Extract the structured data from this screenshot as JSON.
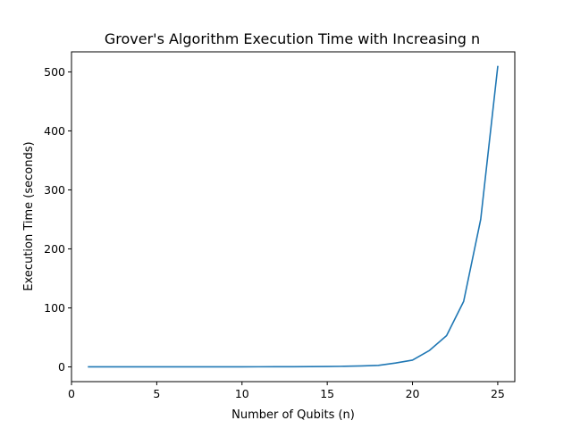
{
  "chart_data": {
    "type": "line",
    "title": "Grover's Algorithm Execution Time with Increasing n",
    "xlabel": "Number of Qubits (n)",
    "ylabel": "Execution Time (seconds)",
    "xlim": [
      0,
      26
    ],
    "ylim": [
      -25,
      534
    ],
    "xticks": [
      0,
      5,
      10,
      15,
      20,
      25
    ],
    "yticks": [
      0,
      100,
      200,
      300,
      400,
      500
    ],
    "grid": false,
    "series": [
      {
        "color": "#1f77b4",
        "x": [
          1,
          2,
          3,
          4,
          5,
          6,
          7,
          8,
          9,
          10,
          11,
          12,
          13,
          14,
          15,
          16,
          17,
          18,
          19,
          20,
          21,
          22,
          23,
          24,
          25
        ],
        "y": [
          0.05,
          0.05,
          0.05,
          0.06,
          0.07,
          0.08,
          0.09,
          0.1,
          0.12,
          0.15,
          0.2,
          0.25,
          0.35,
          0.5,
          0.7,
          1.0,
          1.6,
          2.5,
          6.5,
          11.5,
          28,
          53,
          111,
          250,
          509
        ]
      }
    ]
  }
}
